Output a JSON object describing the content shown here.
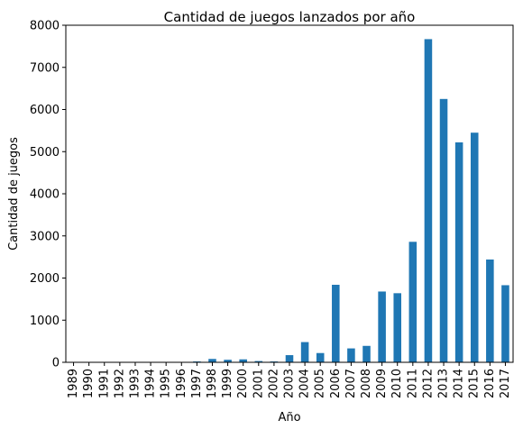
{
  "chart_data": {
    "type": "bar",
    "title": "Cantidad de juegos lanzados por año",
    "xlabel": "Año",
    "ylabel": "Cantidad de juegos",
    "categories": [
      "1989",
      "1990",
      "1991",
      "1992",
      "1993",
      "1994",
      "1995",
      "1996",
      "1997",
      "1998",
      "1999",
      "2000",
      "2001",
      "2002",
      "2003",
      "2004",
      "2005",
      "2006",
      "2007",
      "2008",
      "2009",
      "2010",
      "2011",
      "2012",
      "2013",
      "2014",
      "2015",
      "2016",
      "2017"
    ],
    "values": [
      2,
      2,
      3,
      2,
      2,
      2,
      4,
      5,
      20,
      80,
      60,
      70,
      30,
      20,
      170,
      480,
      220,
      1840,
      330,
      390,
      1680,
      1640,
      2860,
      7670,
      6250,
      5220,
      5450,
      2440,
      1830
    ],
    "ylim": [
      0,
      8000
    ],
    "yticks": [
      0,
      1000,
      2000,
      3000,
      4000,
      5000,
      6000,
      7000,
      8000
    ],
    "bar_color": "#1f77b4",
    "grid": false,
    "legend": "none"
  }
}
